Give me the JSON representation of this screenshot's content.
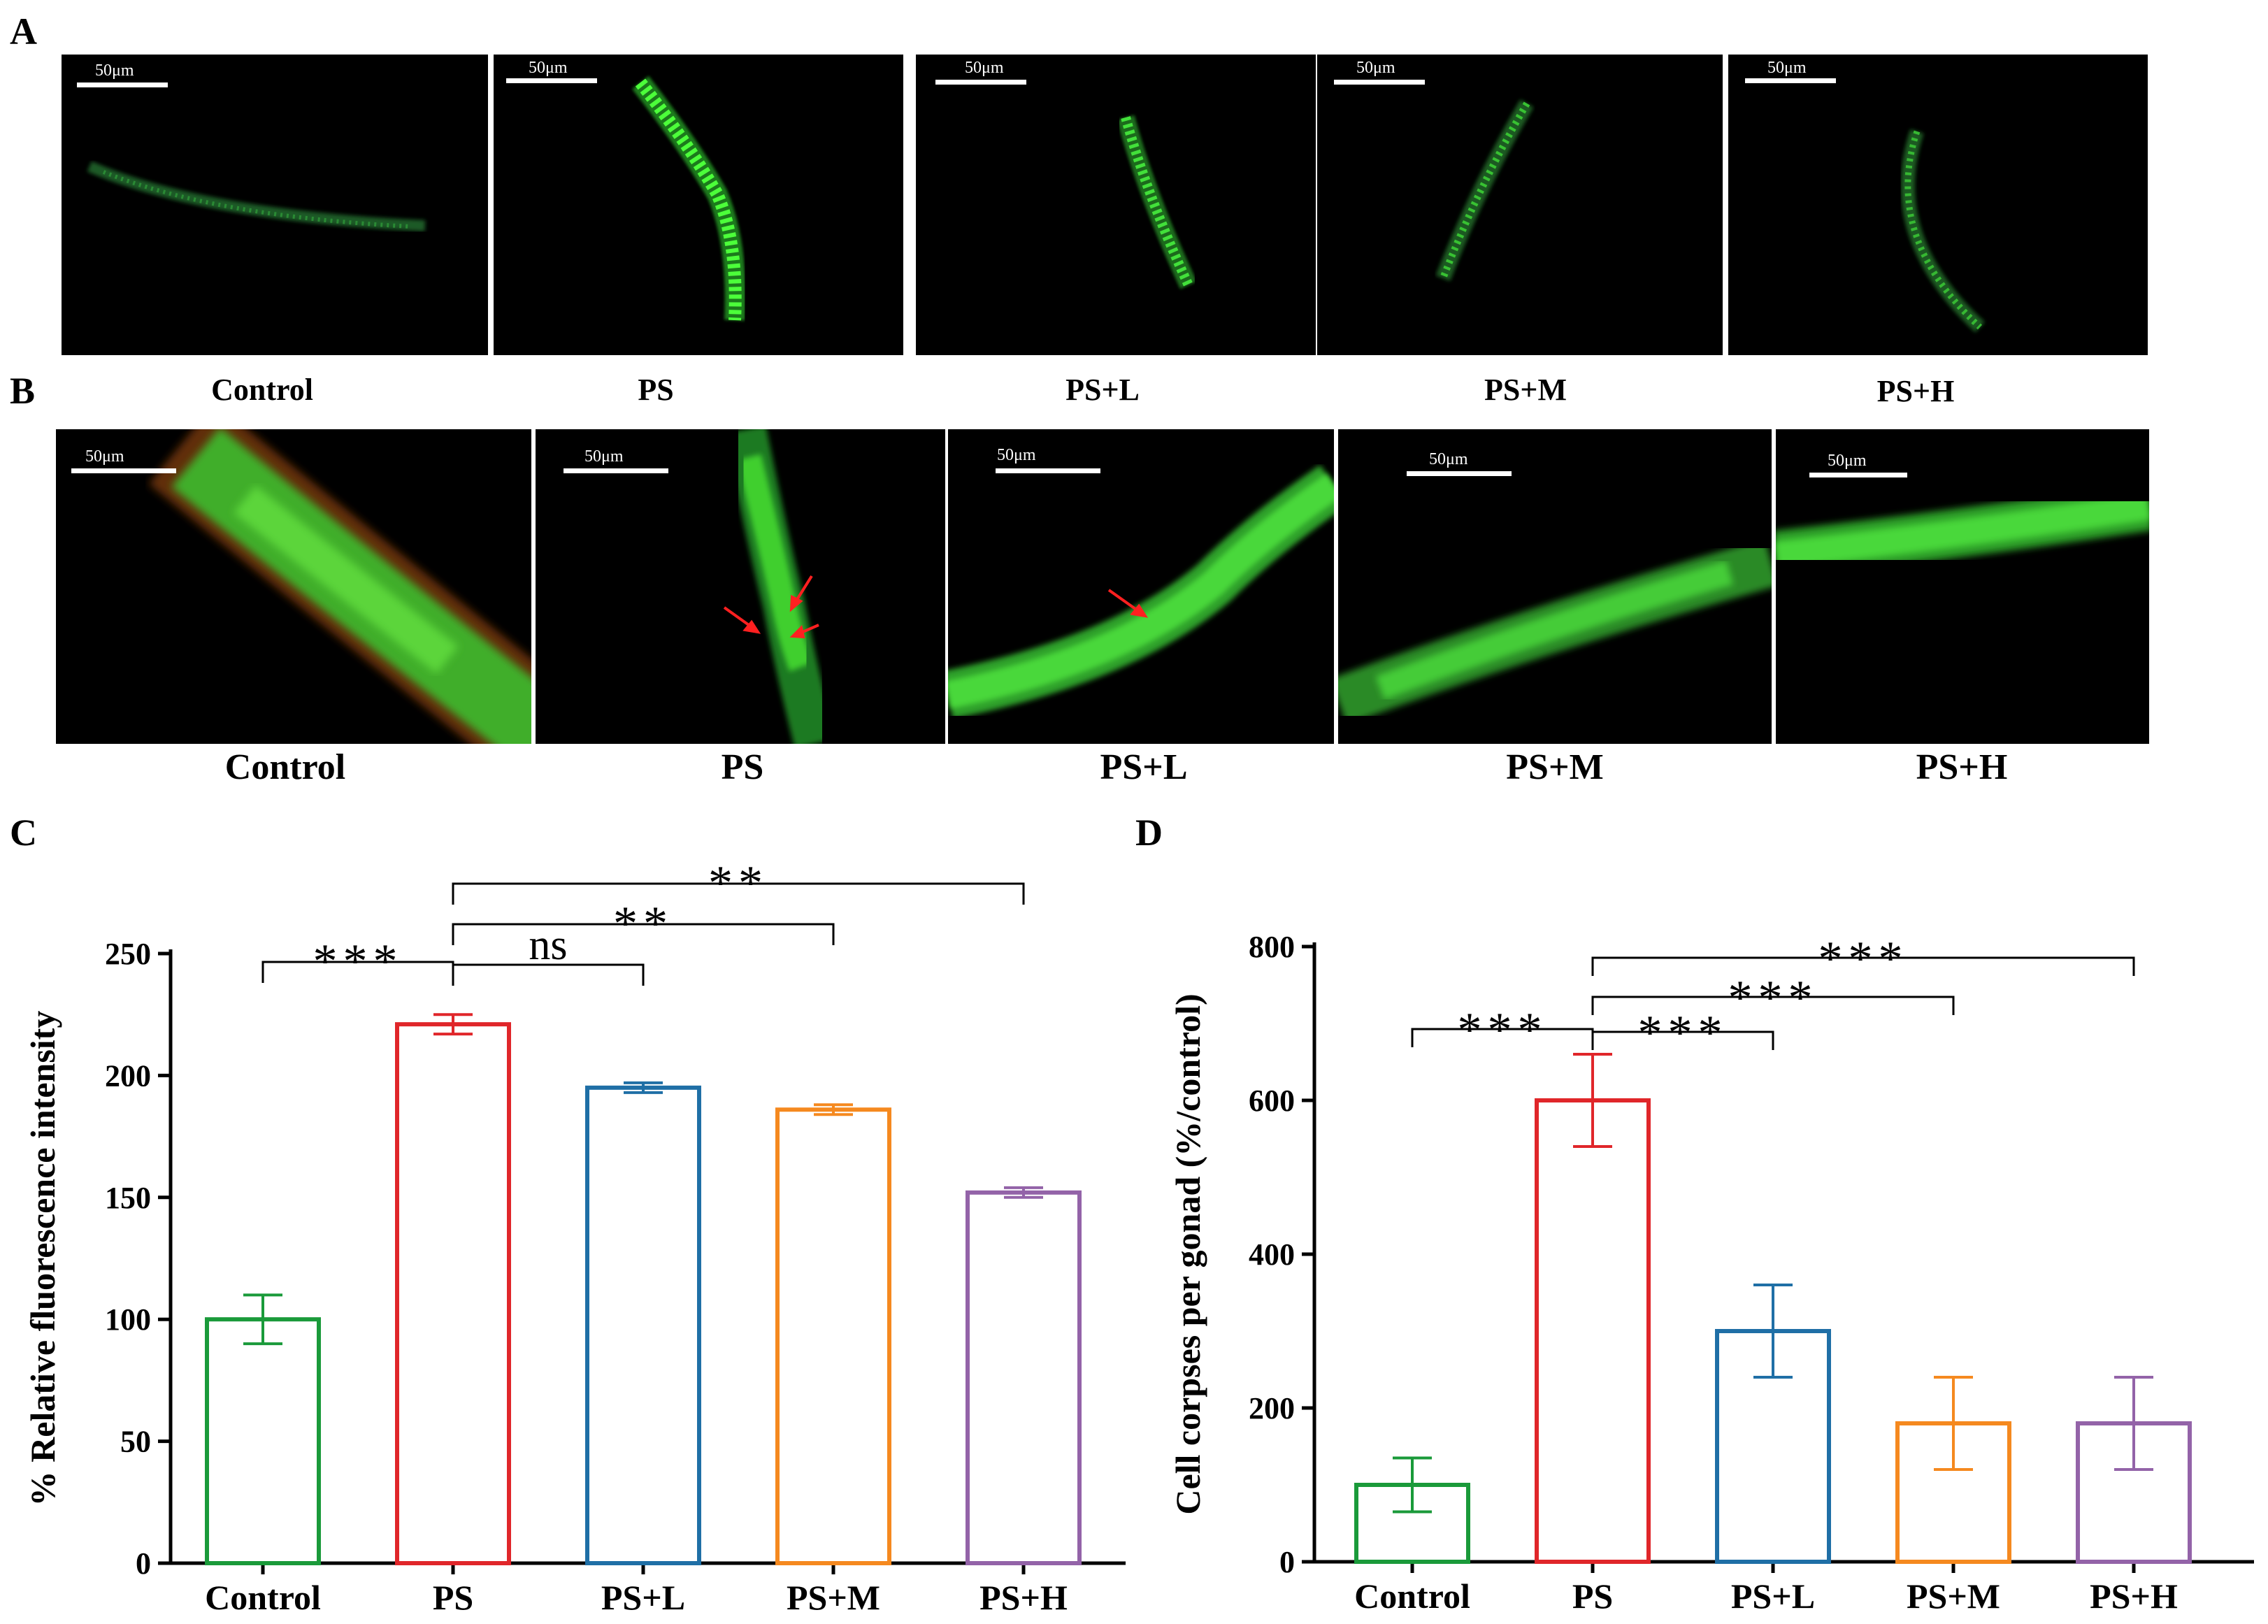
{
  "panels": {
    "a": {
      "letter": "A",
      "labels": [
        "Control",
        "PS",
        "PS+L",
        "PS+M",
        "PS+H"
      ],
      "scale_label": "50μm",
      "fluorescence": "green",
      "relative_signal": [
        0.3,
        1.0,
        0.85,
        0.7,
        0.55
      ]
    },
    "b": {
      "letter": "B",
      "labels": [
        "Control",
        "PS",
        "PS+L",
        "PS+M",
        "PS+H"
      ],
      "scale_label": "50μm",
      "fluorescence": "green",
      "arrow_color": "#ff2020",
      "arrow_counts": [
        0,
        3,
        1,
        0,
        0
      ]
    },
    "c": {
      "letter": "C"
    },
    "d": {
      "letter": "D"
    }
  },
  "chart_data": [
    {
      "type": "bar",
      "panel": "C",
      "categories": [
        "Control",
        "PS",
        "PS+L",
        "PS+M",
        "PS+H"
      ],
      "values": [
        100,
        221,
        195,
        186,
        152
      ],
      "errors": [
        10,
        4,
        2,
        2,
        2
      ],
      "colors": [
        "#1a9a3a",
        "#e0262a",
        "#1f6fa6",
        "#f5891f",
        "#9363a8"
      ],
      "bar_style": "outline",
      "ylabel": "% Relative  fluorescence intensity",
      "xlabel": "",
      "ylim": [
        0,
        250
      ],
      "yticks": [
        0,
        50,
        100,
        150,
        200,
        250
      ],
      "grid": false,
      "significance": [
        {
          "from": "Control",
          "to": "PS",
          "label": "***"
        },
        {
          "from": "PS",
          "to": "PS+L",
          "label": "ns"
        },
        {
          "from": "PS",
          "to": "PS+M",
          "label": "**"
        },
        {
          "from": "PS",
          "to": "PS+H",
          "label": "**"
        }
      ]
    },
    {
      "type": "bar",
      "panel": "D",
      "categories": [
        "Control",
        "PS",
        "PS+L",
        "PS+M",
        "PS+H"
      ],
      "values": [
        100,
        600,
        300,
        180,
        180
      ],
      "errors": [
        35,
        60,
        60,
        60,
        60
      ],
      "colors": [
        "#1a9a3a",
        "#e0262a",
        "#1f6fa6",
        "#f5891f",
        "#9363a8"
      ],
      "bar_style": "outline",
      "ylabel": "Cell corpses per gonad (%/control)",
      "xlabel": "",
      "ylim": [
        0,
        800
      ],
      "yticks": [
        0,
        200,
        400,
        600,
        800
      ],
      "grid": false,
      "significance": [
        {
          "from": "Control",
          "to": "PS",
          "label": "***"
        },
        {
          "from": "PS",
          "to": "PS+L",
          "label": "***"
        },
        {
          "from": "PS",
          "to": "PS+M",
          "label": "***"
        },
        {
          "from": "PS",
          "to": "PS+H",
          "label": "***"
        }
      ]
    }
  ]
}
